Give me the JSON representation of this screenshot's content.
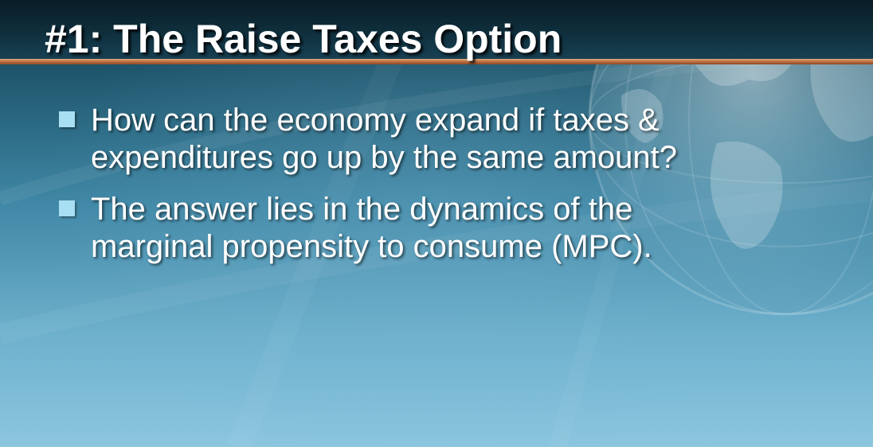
{
  "slide": {
    "title": "#1: The Raise Taxes Option",
    "bullets": [
      {
        "line1": "How can the economy expand if taxes &",
        "line2": "expenditures go up by the same amount?"
      },
      {
        "line1": "The answer lies in the dynamics of the",
        "line2": "marginal propensity to consume (MPC)."
      }
    ]
  },
  "colors": {
    "background_top": "#1c5268",
    "background_bottom": "#8cc6df",
    "header_band": "#0f2f3d",
    "header_rule": "#b86a3d",
    "bullet_marker": "#a8dff2",
    "text": "#ffffff"
  },
  "icons": {
    "background_decoration": "globe-icon",
    "bullet": "square-bullet-icon"
  }
}
